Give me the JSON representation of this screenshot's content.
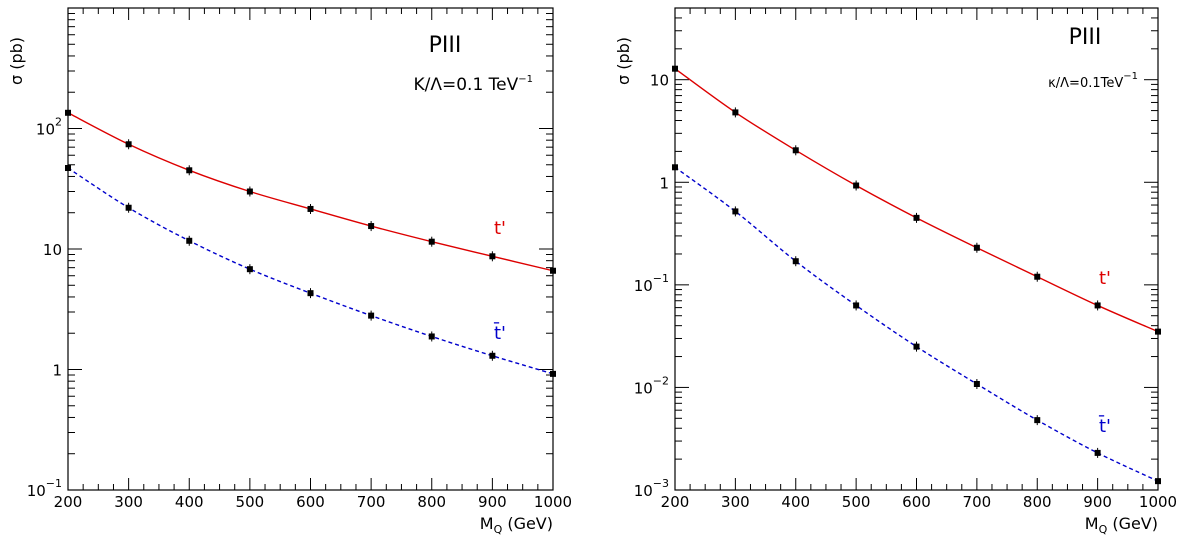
{
  "chart_data": [
    {
      "type": "line",
      "title": "PIII",
      "annotation": {
        "prefix": "K/Λ=0.1 TeV",
        "superscript": "−1"
      },
      "xlabel": {
        "main": "M",
        "sub": "Q",
        "rest": " (GeV)"
      },
      "ylabel": "σ (pb)",
      "xlim": [
        200,
        1000
      ],
      "ylim": [
        0.1,
        1000
      ],
      "yscale": "log",
      "xticks": [
        200,
        300,
        400,
        500,
        600,
        700,
        800,
        900,
        1000
      ],
      "yticks": [
        {
          "value": 0.1,
          "base": "10",
          "exp": "−1"
        },
        {
          "value": 1,
          "base": "1",
          "exp": ""
        },
        {
          "value": 10,
          "base": "10",
          "exp": ""
        },
        {
          "value": 100,
          "base": "10",
          "exp": "2"
        }
      ],
      "grid": false,
      "series": [
        {
          "name": "t'",
          "color": "#dd0000",
          "style": "solid",
          "x": [
            200,
            300,
            400,
            500,
            600,
            700,
            800,
            900,
            1000
          ],
          "y": [
            135,
            74,
            45,
            30,
            21.5,
            15.5,
            11.5,
            8.7,
            6.6
          ]
        },
        {
          "name": "t̄'",
          "color": "#0000cc",
          "style": "dashed",
          "x": [
            200,
            300,
            400,
            500,
            600,
            700,
            800,
            900,
            1000
          ],
          "y": [
            47,
            22,
            11.7,
            6.8,
            4.3,
            2.8,
            1.88,
            1.3,
            0.92
          ]
        }
      ]
    },
    {
      "type": "line",
      "title": "PIII",
      "annotation": {
        "prefix": "κ/Λ=0.1TeV",
        "superscript": "−1"
      },
      "xlabel": {
        "main": "M",
        "sub": "Q",
        "rest": " (GeV)"
      },
      "ylabel": "σ (pb)",
      "xlim": [
        200,
        1000
      ],
      "ylim": [
        0.001,
        50
      ],
      "yscale": "log",
      "xticks": [
        200,
        300,
        400,
        500,
        600,
        700,
        800,
        900,
        1000
      ],
      "yticks": [
        {
          "value": 0.001,
          "base": "10",
          "exp": "−3"
        },
        {
          "value": 0.01,
          "base": "10",
          "exp": "−2"
        },
        {
          "value": 0.1,
          "base": "10",
          "exp": "−1"
        },
        {
          "value": 1,
          "base": "1",
          "exp": ""
        },
        {
          "value": 10,
          "base": "10",
          "exp": ""
        }
      ],
      "grid": false,
      "series": [
        {
          "name": "t'",
          "color": "#dd0000",
          "style": "solid",
          "x": [
            200,
            300,
            400,
            500,
            600,
            700,
            800,
            900,
            1000
          ],
          "y": [
            12.8,
            4.8,
            2.05,
            0.93,
            0.45,
            0.23,
            0.12,
            0.063,
            0.035
          ]
        },
        {
          "name": "t̄'",
          "color": "#0000cc",
          "style": "dashed",
          "x": [
            200,
            300,
            400,
            500,
            600,
            700,
            800,
            900,
            1000
          ],
          "y": [
            1.4,
            0.52,
            0.17,
            0.063,
            0.025,
            0.0108,
            0.0048,
            0.0023,
            0.00122
          ]
        }
      ]
    }
  ]
}
